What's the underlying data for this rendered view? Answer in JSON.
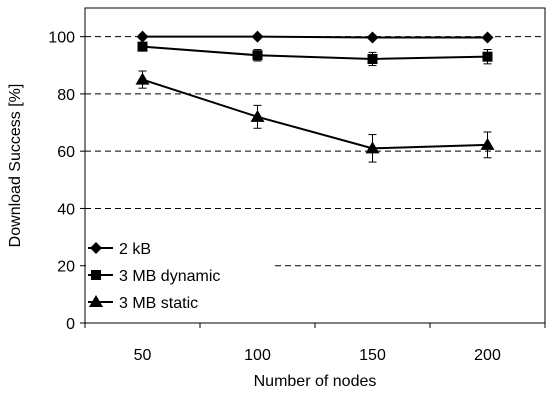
{
  "chart_data": {
    "type": "line",
    "title": "",
    "xlabel": "Number of nodes",
    "ylabel": "Download Success [%]",
    "x": [
      50,
      100,
      150,
      200
    ],
    "xticks": [
      "50",
      "100",
      "150",
      "200"
    ],
    "ylim": [
      0,
      110
    ],
    "yticks": [
      0,
      20,
      40,
      60,
      80,
      100
    ],
    "grid": "horizontal dashed at 20-unit intervals",
    "legend_position": "bottom-left",
    "series": [
      {
        "name": "2 kB",
        "marker": "diamond",
        "values": [
          100,
          100,
          99.7,
          99.7
        ],
        "error": [
          0.3,
          0.3,
          0.3,
          0.3
        ]
      },
      {
        "name": "3 MB dynamic",
        "marker": "square",
        "values": [
          96.5,
          93.5,
          92.2,
          93
        ],
        "error": [
          1.5,
          2,
          2.3,
          2.5
        ]
      },
      {
        "name": "3 MB static",
        "marker": "triangle",
        "values": [
          85,
          72,
          61,
          62.2
        ],
        "error": [
          3,
          4,
          4.8,
          4.5
        ]
      }
    ]
  }
}
